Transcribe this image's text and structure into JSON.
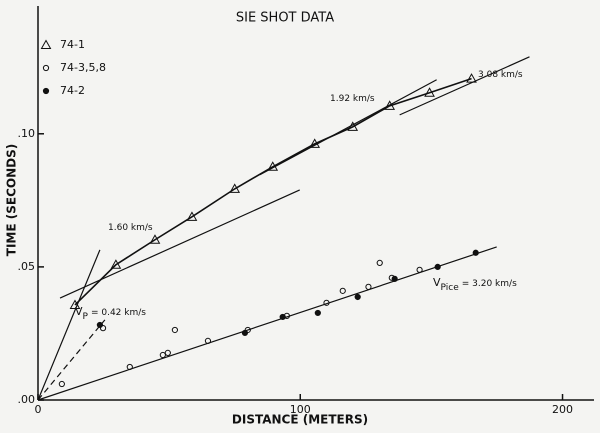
{
  "chart_data": {
    "type": "scatter",
    "title": "SIE SHOT DATA",
    "x_label": "DISTANCE (METERS)",
    "y_label": "TIME (SECONDS)",
    "xlim": [
      0,
      212
    ],
    "ylim": [
      0,
      0.148
    ],
    "xticks": [
      0,
      100,
      200
    ],
    "yticks": [
      {
        "value": 0,
        "label": ".00"
      },
      {
        "value": 0.05,
        "label": ".05"
      },
      {
        "value": 0.1,
        "label": ".10"
      }
    ],
    "series": [
      {
        "name": "74-1",
        "marker": "triangle",
        "connect": true,
        "x": [
          14.1,
          29.7,
          44.6,
          58.7,
          75.0,
          89.5,
          105.5,
          120.0,
          134.1,
          149.3,
          165.3
        ],
        "values": [
          0.0357,
          0.0508,
          0.0602,
          0.0688,
          0.0793,
          0.0876,
          0.0962,
          0.1026,
          0.1105,
          0.1154,
          0.1207
        ]
      },
      {
        "name": "74-3,5,8",
        "marker": "open-circle",
        "x": [
          9.1,
          24.8,
          35.0,
          47.6,
          49.5,
          52.2,
          64.8,
          80.0,
          94.9,
          110.0,
          116.2,
          126.0,
          130.3,
          134.9,
          145.5
        ],
        "values": [
          0.006,
          0.027,
          0.0124,
          0.0169,
          0.0177,
          0.0263,
          0.0222,
          0.0263,
          0.0316,
          0.0365,
          0.041,
          0.0425,
          0.0515,
          0.0459,
          0.0489
        ]
      },
      {
        "name": "74-2",
        "marker": "filled-circle",
        "x": [
          23.6,
          78.9,
          93.3,
          106.7,
          121.9,
          136.0,
          152.4,
          166.9
        ],
        "values": [
          0.0282,
          0.0252,
          0.0312,
          0.0327,
          0.0387,
          0.0455,
          0.05,
          0.0553
        ]
      }
    ],
    "lines": [
      {
        "x": [
          0,
          23.6
        ],
        "y": [
          0,
          0.0564
        ],
        "dashed": false
      },
      {
        "x": [
          8.4,
          99.8
        ],
        "y": [
          0.0383,
          0.0789
        ],
        "dashed": false,
        "label": "1.60 km/s"
      },
      {
        "x": [
          84.6,
          152
        ],
        "y": [
          0.0846,
          0.1203
        ],
        "dashed": false,
        "label": "1.92 km/s"
      },
      {
        "x": [
          137.9,
          187.4
        ],
        "y": [
          0.1071,
          0.1289
        ],
        "dashed": false,
        "label": "3.08 km/s"
      },
      {
        "x": [
          0,
          25.5
        ],
        "y": [
          0,
          0.0301
        ],
        "dashed": true,
        "label": "V",
        "subscript": "P",
        "text": "= 0.42 km/s"
      },
      {
        "x": [
          0,
          174.9
        ],
        "y": [
          0,
          0.0575
        ],
        "dashed": false,
        "label": "V",
        "subscript": "Pice",
        "text": "= 3.20 km/s"
      }
    ]
  }
}
